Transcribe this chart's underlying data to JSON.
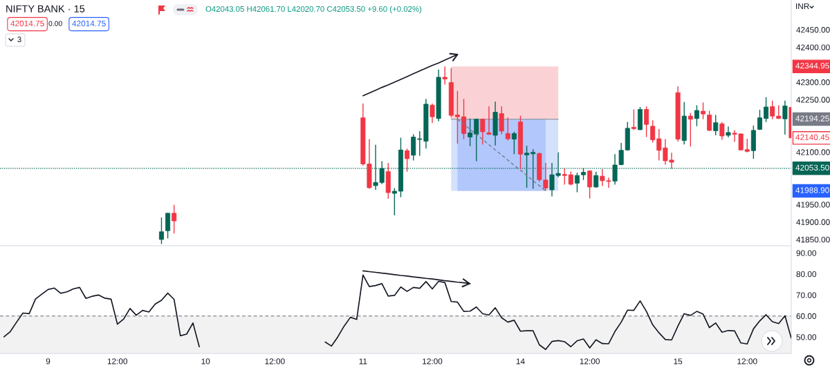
{
  "chart_data": [
    {
      "type": "candlestick",
      "title": "NIFTY BANK · 15",
      "categories": [
        null,
        null,
        null,
        null,
        null,
        null,
        null,
        null,
        null,
        null,
        null,
        null,
        null,
        null,
        null,
        null,
        null,
        null,
        null,
        null,
        null,
        null,
        null,
        null,
        null,
        null,
        null,
        null,
        null,
        null,
        null,
        null,
        null,
        null,
        null,
        null,
        null,
        null,
        null,
        null,
        null,
        null,
        null,
        null,
        null,
        null,
        null,
        null,
        null,
        null,
        null,
        null,
        null,
        null,
        null,
        null,
        null,
        null,
        null,
        null,
        null,
        null,
        null,
        null,
        null,
        null,
        null,
        null,
        null,
        null,
        null,
        null,
        null,
        null,
        null,
        null,
        null,
        null,
        null,
        null,
        null,
        null,
        null,
        null,
        null,
        null,
        null,
        null,
        null,
        null,
        null,
        null,
        null,
        null,
        null,
        null,
        null,
        null,
        null,
        null,
        null,
        null,
        null,
        null,
        null,
        null,
        null,
        null,
        null,
        null,
        null,
        null,
        null,
        null,
        null,
        null,
        null,
        null,
        null,
        null,
        null,
        null,
        null,
        null,
        null,
        null
      ],
      "ohlc": [
        null,
        null,
        null,
        null,
        null,
        null,
        null,
        null,
        null,
        null,
        null,
        null,
        null,
        null,
        null,
        null,
        null,
        null,
        null,
        null,
        null,
        null,
        null,
        null,
        null,
        [
          41850,
          41913,
          41837,
          41872
        ],
        [
          41875,
          41926,
          41853,
          41925
        ],
        [
          41925,
          41949,
          41867,
          41903
        ],
        null,
        null,
        null,
        null,
        null,
        null,
        null,
        null,
        null,
        null,
        null,
        null,
        null,
        null,
        null,
        null,
        null,
        null,
        null,
        null,
        null,
        null,
        null,
        null,
        null,
        null,
        null,
        null,
        null,
        [
          42198,
          42239,
          42061,
          42066
        ],
        [
          42066,
          42137,
          41995,
          41998
        ],
        [
          42004,
          42121,
          41992,
          42013
        ],
        [
          42013,
          42074,
          42008,
          42053
        ],
        [
          42044,
          42069,
          41967,
          41984
        ],
        [
          41982,
          41997,
          41919,
          41988
        ],
        [
          41988,
          42141,
          41971,
          42106
        ],
        [
          42104,
          42110,
          42044,
          42081
        ],
        [
          42091,
          42151,
          42076,
          42143
        ],
        [
          42136,
          42160,
          42089,
          42138
        ],
        [
          42131,
          42252,
          42110,
          42237
        ],
        [
          42234,
          42239,
          42183,
          42201
        ],
        [
          42196,
          42336,
          42188,
          42314
        ],
        [
          42314,
          42345,
          42293,
          42309
        ],
        [
          42299,
          42340,
          42199,
          42205
        ],
        [
          42206,
          42275,
          42124,
          42201
        ],
        [
          42201,
          42252,
          42137,
          42153
        ],
        [
          42143,
          42196,
          42117,
          42155
        ],
        [
          42151,
          42196,
          42074,
          42194
        ],
        [
          42194,
          42196,
          42122,
          42158
        ],
        [
          42155,
          42231,
          42149,
          42151
        ],
        [
          42148,
          42244,
          42119,
          42214
        ],
        [
          42210,
          42231,
          42151,
          42160
        ],
        [
          42153,
          42199,
          42133,
          42138
        ],
        [
          42137,
          42158,
          42094,
          42153
        ],
        [
          42186,
          42204,
          42051,
          42094
        ],
        [
          42092,
          42118,
          41998,
          42097
        ],
        [
          42095,
          42108,
          41995,
          42099
        ],
        [
          42096,
          42098,
          42015,
          42021
        ],
        [
          42020,
          42069,
          41989,
          41997
        ],
        [
          41992,
          42069,
          41973,
          42035
        ],
        [
          42033,
          42099,
          42028,
          42039
        ],
        [
          42036,
          42053,
          42007,
          42033
        ],
        [
          42035,
          42044,
          42005,
          42008
        ],
        [
          42011,
          42041,
          41985,
          42033
        ],
        [
          42035,
          42054,
          42020,
          42042
        ],
        [
          42046,
          42048,
          41967,
          42000
        ],
        [
          42000,
          42044,
          41998,
          42033
        ],
        [
          42031,
          42051,
          42003,
          42018
        ],
        [
          42018,
          42027,
          41998,
          42016
        ],
        [
          42017,
          42094,
          42007,
          42063
        ],
        [
          42064,
          42126,
          42062,
          42105
        ],
        [
          42106,
          42186,
          42104,
          42168
        ],
        [
          42171,
          42222,
          42163,
          42167
        ],
        [
          42164,
          42229,
          42163,
          42222
        ],
        [
          42222,
          42231,
          42143,
          42179
        ],
        [
          42174,
          42191,
          42127,
          42135
        ],
        [
          42138,
          42166,
          42076,
          42105
        ],
        [
          42112,
          42137,
          42064,
          42075
        ],
        [
          42077,
          42098,
          42052,
          42071
        ],
        [
          42270,
          42288,
          42130,
          42137
        ],
        [
          42133,
          42243,
          42122,
          42203
        ],
        [
          42203,
          42212,
          42116,
          42194
        ],
        [
          42196,
          42234,
          42174,
          42219
        ],
        [
          42217,
          42242,
          42194,
          42209
        ],
        [
          42206,
          42218,
          42160,
          42162
        ],
        [
          42161,
          42206,
          42148,
          42184
        ],
        [
          42181,
          42186,
          42135,
          42146
        ],
        [
          42148,
          42173,
          42142,
          42156
        ],
        [
          42154,
          42163,
          42129,
          42151
        ],
        [
          42152,
          42153,
          42105,
          42106
        ],
        [
          42107,
          42138,
          42099,
          42102
        ],
        [
          42104,
          42176,
          42081,
          42162
        ],
        [
          42165,
          42221,
          42163,
          42198
        ],
        [
          42196,
          42257,
          42186,
          42229
        ],
        [
          42230,
          42247,
          42194,
          42203
        ],
        [
          42203,
          42234,
          42195,
          42196
        ],
        [
          42195,
          42247,
          42150,
          42232
        ],
        [
          42228,
          42228,
          42140,
          42140.45
        ]
      ],
      "value_labels": [
        null,
        null,
        null,
        null,
        null,
        null,
        null,
        null,
        null,
        null,
        null,
        null,
        null,
        null,
        null,
        null,
        null,
        null,
        null,
        null,
        null,
        null,
        null,
        null,
        null,
        null,
        null,
        null,
        null,
        null,
        null,
        null,
        null,
        null,
        null,
        null,
        null,
        null,
        null,
        null,
        null,
        null,
        null,
        null,
        null,
        null,
        null,
        null,
        null,
        null,
        null,
        null,
        null,
        null,
        null,
        null,
        null,
        null,
        null,
        null,
        null,
        null,
        null,
        null,
        null,
        null,
        null,
        null,
        null,
        null,
        null,
        null,
        null,
        null,
        null,
        null,
        null,
        null,
        null,
        null,
        null,
        null,
        null,
        null,
        null,
        null,
        null,
        null,
        null,
        null,
        null,
        null,
        null,
        null,
        null,
        null,
        null,
        null,
        null,
        null,
        null,
        null,
        null,
        null,
        null,
        null,
        null,
        null,
        null,
        null,
        null,
        null,
        null,
        null,
        null,
        null,
        null,
        null,
        null,
        null,
        null,
        null,
        null,
        null,
        null,
        "42140.45"
      ],
      "colors": [
        null,
        null,
        null,
        null,
        null,
        null,
        null,
        null,
        null,
        null,
        null,
        null,
        null,
        null,
        null,
        null,
        null,
        null,
        null,
        null,
        null,
        null,
        null,
        null,
        null,
        "#056656",
        "#056656",
        "#f23645",
        null,
        null,
        null,
        null,
        null,
        null,
        null,
        null,
        null,
        null,
        null,
        null,
        null,
        null,
        null,
        null,
        null,
        null,
        null,
        null,
        null,
        null,
        null,
        null,
        null,
        null,
        null,
        null,
        null,
        "#f23645",
        "#f23645",
        "#056656",
        "#056656",
        "#f23645",
        "#056656",
        "#056656",
        "#f23645",
        "#056656",
        "#056656",
        "#056656",
        "#f23645",
        "#056656",
        "#f23645",
        "#f23645",
        "#f23645",
        "#f23645",
        "#056656",
        "#056656",
        "#f23645",
        "#f23645",
        "#056656",
        "#f23645",
        "#f23645",
        "#056656",
        "#f23645",
        "#056656",
        "#056656",
        "#f23645",
        "#f23645",
        "#056656",
        "#056656",
        "#f23645",
        "#f23645",
        "#056656",
        "#056656",
        "#f23645",
        "#056656",
        "#f23645",
        "#f23645",
        "#056656",
        "#056656",
        "#056656",
        "#f23645",
        "#056656",
        "#f23645",
        "#f23645",
        "#f23645",
        "#f23645",
        "#f23645",
        "#f23645",
        "#056656",
        "#f23645",
        "#056656",
        "#f23645",
        "#f23645",
        "#056656",
        "#f23645",
        "#056656",
        "#f23645",
        "#f23645",
        "#f23645",
        "#056656",
        "#056656",
        "#056656",
        "#f23645",
        "#f23645",
        "#056656",
        "#f23645"
      ],
      "ylim": [
        41832,
        42535
      ],
      "yticks": [
        {
          "value": 41850,
          "label": "41850.00"
        },
        {
          "value": 41900,
          "label": "41900.00"
        },
        {
          "value": 41950,
          "label": "41950.00"
        },
        {
          "value": 42100,
          "label": "42100.00"
        },
        {
          "value": 42250,
          "label": "42250.00"
        },
        {
          "value": 42300,
          "label": "42300.00"
        },
        {
          "value": 42400,
          "label": "42400.00"
        },
        {
          "value": 42450,
          "label": "42450.00"
        }
      ],
      "tick_labels": "y",
      "ref_lines": [
        {
          "axis": "y",
          "value": 42053.5,
          "label": "42053.50",
          "color": "#056656",
          "line_style": "dotted"
        }
      ],
      "series": [
        {
          "type": "line",
          "color": "#787b86",
          "line_style": "dashed",
          "values": [
            null,
            null,
            null,
            null,
            null,
            null,
            null,
            null,
            null,
            null,
            null,
            null,
            null,
            null,
            null,
            null,
            null,
            null,
            null,
            null,
            null,
            null,
            null,
            null,
            null,
            null,
            null,
            null,
            null,
            null,
            null,
            null,
            null,
            null,
            null,
            null,
            null,
            null,
            null,
            null,
            null,
            null,
            null,
            null,
            null,
            null,
            null,
            null,
            null,
            null,
            null,
            null,
            null,
            null,
            null,
            null,
            null,
            null,
            null,
            null,
            null,
            null,
            null,
            null,
            null,
            null,
            null,
            null,
            null,
            null,
            null,
            null,
            42194,
            42180,
            42165,
            42150,
            42136,
            42121,
            42106,
            42092,
            42077,
            42062,
            42048,
            42033,
            42018,
            42004,
            41989,
            null,
            null,
            null,
            null,
            null,
            null,
            null,
            null,
            null,
            null,
            null,
            null,
            null,
            null,
            null,
            null,
            null,
            null,
            null,
            null,
            null,
            null,
            null,
            null,
            null,
            null,
            null,
            null,
            null,
            null,
            null,
            null,
            null,
            null,
            null,
            null,
            null,
            null,
            null
          ]
        },
        {
          "type": "line",
          "color": "#131722",
          "line_style": "solid",
          "values": [
            null,
            null,
            null,
            null,
            null,
            null,
            null,
            null,
            null,
            null,
            null,
            null,
            null,
            null,
            null,
            null,
            null,
            null,
            null,
            null,
            null,
            null,
            null,
            null,
            null,
            null,
            null,
            null,
            null,
            null,
            null,
            null,
            null,
            null,
            null,
            null,
            null,
            null,
            null,
            null,
            null,
            null,
            null,
            null,
            null,
            null,
            null,
            null,
            null,
            null,
            null,
            null,
            null,
            null,
            null,
            null,
            null,
            42261,
            42269,
            42277,
            42285,
            42292,
            42300,
            42308,
            42316,
            42324,
            42332,
            42340,
            42348,
            42355,
            42363,
            42371,
            42379,
            null,
            null,
            null,
            null,
            null,
            null,
            null,
            null,
            null,
            null,
            null,
            null,
            null,
            null,
            null,
            null,
            null,
            null,
            null,
            null,
            null,
            null,
            null,
            null,
            null,
            null,
            null,
            null,
            null,
            null,
            null,
            null,
            null,
            null,
            null,
            null,
            null,
            null,
            null,
            null,
            null,
            null,
            null,
            null,
            null,
            null,
            null,
            null,
            null,
            null,
            null,
            null,
            null
          ]
        }
      ],
      "annotations": [
        "O42043.05 H42061.70 L42020.70 C42053.50 +9.60 (+0.02%)",
        "42014.75",
        "0.00",
        "42014.75",
        "3",
        "INR",
        "42344.95",
        "42194.25",
        "41988.90"
      ]
    },
    {
      "type": "line",
      "categories": [
        null,
        null,
        null,
        null,
        null,
        null,
        null,
        "9",
        null,
        null,
        null,
        null,
        null,
        null,
        null,
        null,
        null,
        null,
        "12:00",
        null,
        null,
        null,
        null,
        null,
        null,
        null,
        null,
        null,
        null,
        null,
        null,
        null,
        "10",
        null,
        null,
        null,
        null,
        null,
        null,
        null,
        null,
        null,
        null,
        "12:00",
        null,
        null,
        null,
        null,
        null,
        null,
        null,
        null,
        null,
        null,
        null,
        null,
        null,
        "11",
        null,
        null,
        null,
        null,
        null,
        null,
        null,
        null,
        null,
        null,
        "12:00",
        null,
        null,
        null,
        null,
        null,
        null,
        null,
        null,
        null,
        null,
        null,
        null,
        null,
        "14",
        null,
        null,
        null,
        null,
        null,
        null,
        null,
        null,
        null,
        null,
        "12:00",
        null,
        null,
        null,
        null,
        null,
        null,
        null,
        null,
        null,
        null,
        null,
        null,
        null,
        "15",
        null,
        null,
        null,
        null,
        null,
        null,
        null,
        null,
        null,
        null,
        "12:00",
        null,
        null,
        null,
        null,
        null,
        null,
        null
      ],
      "series": [
        {
          "color": "#131722",
          "values": [
            50.1,
            52.6,
            57.1,
            61.4,
            61.1,
            68.1,
            70.4,
            72.6,
            73.3,
            70.8,
            71.5,
            72.9,
            73.6,
            68.4,
            69.4,
            70.0,
            68.5,
            68.0,
            56.1,
            58.6,
            63.6,
            60.4,
            62.7,
            61.9,
            65.7,
            67.5,
            70.9,
            67.9,
            50.6,
            51.4,
            56.7,
            45.4,
            null,
            null,
            null,
            null,
            null,
            null,
            null,
            null,
            null,
            null,
            null,
            null,
            null,
            null,
            null,
            null,
            null,
            null,
            null,
            47.6,
            45.7,
            50.1,
            55.2,
            59.4,
            58.4,
            79.5,
            74.0,
            74.5,
            75.4,
            69.5,
            69.8,
            73.8,
            71.7,
            73.6,
            73.2,
            76.4,
            72.9,
            76.5,
            75.9,
            66.9,
            66.6,
            62.2,
            62.3,
            64.3,
            61.1,
            60.5,
            63.9,
            59.2,
            57.1,
            58.0,
            52.8,
            53.0,
            53.0,
            46.3,
            44.1,
            47.9,
            48.3,
            47.8,
            45.4,
            48.2,
            49.1,
            44.8,
            48.7,
            46.9,
            46.8,
            52.6,
            57.1,
            62.8,
            62.7,
            67.2,
            62.2,
            55.8,
            52.0,
            48.8,
            48.6,
            55.2,
            61.1,
            60.3,
            62.2,
            60.9,
            54.5,
            56.7,
            52.3,
            53.1,
            52.9,
            47.2,
            46.7,
            53.9,
            57.7,
            60.6,
            57.3,
            56.4,
            60.1,
            49.5
          ]
        },
        {
          "type": "line",
          "color": "#131722",
          "line_style": "solid",
          "values": [
            null,
            null,
            null,
            null,
            null,
            null,
            null,
            null,
            null,
            null,
            null,
            null,
            null,
            null,
            null,
            null,
            null,
            null,
            null,
            null,
            null,
            null,
            null,
            null,
            null,
            null,
            null,
            null,
            null,
            null,
            null,
            null,
            null,
            null,
            null,
            null,
            null,
            null,
            null,
            null,
            null,
            null,
            null,
            null,
            null,
            null,
            null,
            null,
            null,
            null,
            null,
            null,
            null,
            null,
            null,
            null,
            null,
            81.5,
            81.1,
            80.8,
            80.4,
            80.1,
            79.7,
            79.3,
            79.0,
            78.6,
            78.3,
            77.9,
            77.6,
            77.2,
            76.8,
            76.5,
            76.1,
            75.8,
            75.4,
            null,
            null,
            null,
            null,
            null,
            null,
            null,
            null,
            null,
            null,
            null,
            null,
            null,
            null,
            null,
            null,
            null,
            null,
            null,
            null,
            null,
            null,
            null,
            null,
            null,
            null,
            null,
            null,
            null,
            null,
            null,
            null,
            null,
            null,
            null,
            null,
            null,
            null,
            null,
            null,
            null,
            null,
            null,
            null,
            null,
            null,
            null,
            null,
            null,
            null,
            null
          ]
        }
      ],
      "ylim": [
        42.2,
        93.1
      ],
      "yticks": [
        {
          "value": 50,
          "label": "50.00"
        },
        {
          "value": 60,
          "label": "60.00"
        },
        {
          "value": 70,
          "label": "70.00"
        },
        {
          "value": 80,
          "label": "80.00"
        },
        {
          "value": 90,
          "label": "90.00"
        }
      ],
      "ref_lines": [
        {
          "axis": "y",
          "value": 60,
          "color": "#9598a1",
          "line_style": "dashed"
        }
      ],
      "bands": [
        {
          "axis": "y",
          "from": 42.2,
          "to": 60,
          "color": "#f2f2f2"
        }
      ]
    }
  ]
}
